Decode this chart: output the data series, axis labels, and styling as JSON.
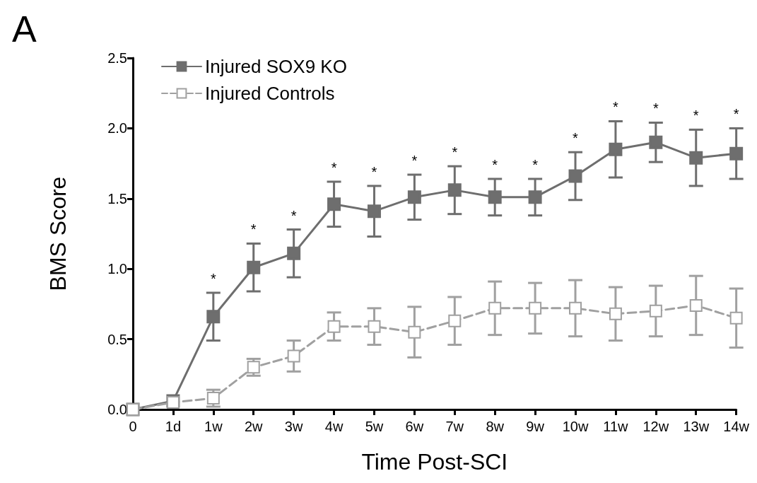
{
  "chart_data": {
    "type": "line",
    "title": "A",
    "xlabel": "Time Post-SCI",
    "ylabel": "BMS Score",
    "categories": [
      "0",
      "1d",
      "1w",
      "2w",
      "3w",
      "4w",
      "5w",
      "6w",
      "7w",
      "8w",
      "9w",
      "10w",
      "11w",
      "12w",
      "13w",
      "14w"
    ],
    "series": [
      {
        "name": "Injured SOX9 KO",
        "color": "#6e6e6e",
        "line_style": "solid",
        "values": [
          0,
          0.06,
          0.66,
          1.01,
          1.11,
          1.46,
          1.41,
          1.51,
          1.56,
          1.51,
          1.51,
          1.66,
          1.85,
          1.9,
          1.79,
          1.82
        ],
        "errors": [
          null,
          null,
          0.17,
          0.17,
          0.17,
          0.16,
          0.18,
          0.16,
          0.17,
          0.13,
          0.13,
          0.17,
          0.2,
          0.14,
          0.2,
          0.18
        ]
      },
      {
        "name": "Injured Controls",
        "color": "#a0a0a0",
        "line_style": "dashed",
        "values": [
          0,
          0.05,
          0.08,
          0.3,
          0.38,
          0.59,
          0.59,
          0.55,
          0.63,
          0.72,
          0.72,
          0.72,
          0.68,
          0.7,
          0.74,
          0.65
        ],
        "errors": [
          null,
          null,
          0.06,
          0.06,
          0.11,
          0.1,
          0.13,
          0.18,
          0.17,
          0.19,
          0.18,
          0.2,
          0.19,
          0.18,
          0.21,
          0.21
        ]
      }
    ],
    "marker": "square",
    "ylim": [
      0,
      2.5
    ],
    "yticks": [
      {
        "value": 0,
        "label": "0.0"
      },
      0.5,
      {
        "value": 1,
        "label": "1.0"
      },
      1.5,
      {
        "value": 2,
        "label": "2.0"
      },
      2.5
    ],
    "grid": false,
    "legend": "top left",
    "annotations": [
      {
        "text": "*",
        "x": "1w",
        "y": 0.66
      },
      {
        "text": "*",
        "x": "2w",
        "y": 1.01
      },
      {
        "text": "*",
        "x": "3w",
        "y": 1.11
      },
      {
        "text": "*",
        "x": "4w",
        "y": 1.46
      },
      {
        "text": "*",
        "x": "5w",
        "y": 1.41
      },
      {
        "text": "*",
        "x": "6w",
        "y": 1.51
      },
      {
        "text": "*",
        "x": "7w",
        "y": 1.56
      },
      {
        "text": "*",
        "x": "8w",
        "y": 1.51
      },
      {
        "text": "*",
        "x": "9w",
        "y": 1.51
      },
      {
        "text": "*",
        "x": "10w",
        "y": 1.66
      },
      {
        "text": "*",
        "x": "11w",
        "y": 1.85
      },
      {
        "text": "*",
        "x": "12w",
        "y": 1.9
      },
      {
        "text": "*",
        "x": "13w",
        "y": 1.79
      },
      {
        "text": "*",
        "x": "14w",
        "y": 1.82
      }
    ]
  }
}
